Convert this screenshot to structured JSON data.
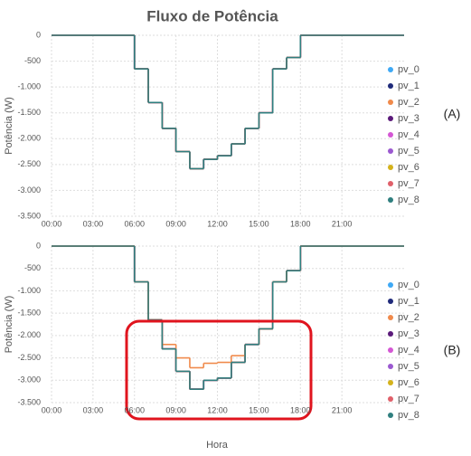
{
  "chart_data": [
    {
      "type": "line",
      "title": "Fluxo de Potência",
      "ylabel": "Potência (W)",
      "annotation": "(A)",
      "xlim": [
        0,
        25.5
      ],
      "ylim": [
        -3500,
        0
      ],
      "xticks": [
        {
          "value": 0,
          "label": "00:00"
        },
        {
          "value": 3,
          "label": "03:00"
        },
        {
          "value": 6,
          "label": "06:00"
        },
        {
          "value": 9,
          "label": "09:00"
        },
        {
          "value": 12,
          "label": "12:00"
        },
        {
          "value": 15,
          "label": "15:00"
        },
        {
          "value": 18,
          "label": "18:00"
        },
        {
          "value": 21,
          "label": "21:00"
        }
      ],
      "yticks": [
        0,
        -500,
        {
          "value": -1000,
          "label": "-1.000"
        },
        {
          "value": -1500,
          "label": "-1.500"
        },
        {
          "value": -2000,
          "label": "-2.000"
        },
        {
          "value": -2500,
          "label": "-2.500"
        },
        {
          "value": -3000,
          "label": "-3.000"
        },
        {
          "value": -3500,
          "label": "-3.500"
        }
      ],
      "grid": true,
      "step": true,
      "x": [
        0,
        6,
        7,
        8,
        9,
        10,
        11,
        12,
        13,
        14,
        15,
        16,
        17,
        18
      ],
      "series": [
        {
          "name": "pv_0",
          "color": "#3fa9f5",
          "values": [
            0,
            -650,
            -1300,
            -1800,
            -2250,
            -2580,
            -2400,
            -2330,
            -2100,
            -1800,
            -1500,
            -650,
            -430,
            0
          ]
        },
        {
          "name": "pv_1",
          "color": "#1f2a7a",
          "values": [
            0,
            -650,
            -1300,
            -1800,
            -2250,
            -2580,
            -2400,
            -2330,
            -2100,
            -1800,
            -1500,
            -650,
            -430,
            0
          ]
        },
        {
          "name": "pv_2",
          "color": "#f08a4b",
          "values": [
            0,
            -650,
            -1300,
            -1800,
            -2250,
            -2580,
            -2400,
            -2330,
            -2100,
            -1800,
            -1500,
            -650,
            -430,
            0
          ]
        },
        {
          "name": "pv_3",
          "color": "#5b1a7a",
          "values": [
            0,
            -650,
            -1300,
            -1800,
            -2250,
            -2580,
            -2400,
            -2330,
            -2100,
            -1800,
            -1500,
            -650,
            -430,
            0
          ]
        },
        {
          "name": "pv_4",
          "color": "#d457d4",
          "values": [
            0,
            -650,
            -1300,
            -1800,
            -2250,
            -2580,
            -2400,
            -2330,
            -2100,
            -1800,
            -1500,
            -650,
            -430,
            0
          ]
        },
        {
          "name": "pv_5",
          "color": "#9b59d0",
          "values": [
            0,
            -650,
            -1300,
            -1800,
            -2250,
            -2580,
            -2400,
            -2330,
            -2100,
            -1800,
            -1500,
            -650,
            -430,
            0
          ]
        },
        {
          "name": "pv_6",
          "color": "#d4b21a",
          "values": [
            0,
            -650,
            -1300,
            -1800,
            -2250,
            -2580,
            -2400,
            -2330,
            -2100,
            -1800,
            -1500,
            -650,
            -430,
            0
          ]
        },
        {
          "name": "pv_7",
          "color": "#e0606a",
          "values": [
            0,
            -650,
            -1300,
            -1800,
            -2250,
            -2580,
            -2400,
            -2330,
            -2100,
            -1800,
            -1500,
            -650,
            -430,
            0
          ]
        },
        {
          "name": "pv_8",
          "color": "#2f7f7f",
          "values": [
            0,
            -650,
            -1300,
            -1800,
            -2250,
            -2580,
            -2400,
            -2330,
            -2100,
            -1800,
            -1500,
            -650,
            -430,
            0
          ]
        }
      ]
    },
    {
      "type": "line",
      "ylabel": "Potência (W)",
      "xlabel": "Hora",
      "annotation": "(B)",
      "xlim": [
        0,
        25.5
      ],
      "ylim": [
        -3500,
        0
      ],
      "xticks": [
        {
          "value": 0,
          "label": "00:00"
        },
        {
          "value": 3,
          "label": "03:00"
        },
        {
          "value": 6,
          "label": "06:00"
        },
        {
          "value": 9,
          "label": "09:00"
        },
        {
          "value": 12,
          "label": "12:00"
        },
        {
          "value": 15,
          "label": "15:00"
        },
        {
          "value": 18,
          "label": "18:00"
        },
        {
          "value": 21,
          "label": "21:00"
        }
      ],
      "yticks": [
        0,
        -500,
        {
          "value": -1000,
          "label": "-1.000"
        },
        {
          "value": -1500,
          "label": "-1.500"
        },
        {
          "value": -2000,
          "label": "-2.000"
        },
        {
          "value": -2500,
          "label": "-2.500"
        },
        {
          "value": -3000,
          "label": "-3.000"
        },
        {
          "value": -3500,
          "label": "-3.500"
        }
      ],
      "grid": true,
      "step": true,
      "x": [
        0,
        6,
        7,
        8,
        9,
        10,
        11,
        12,
        13,
        14,
        15,
        16,
        17,
        18
      ],
      "series": [
        {
          "name": "pv_0",
          "color": "#3fa9f5",
          "values": [
            0,
            -800,
            -1650,
            -2300,
            -2800,
            -3200,
            -3000,
            -2950,
            -2600,
            -2200,
            -1850,
            -800,
            -550,
            0
          ]
        },
        {
          "name": "pv_1",
          "color": "#1f2a7a",
          "values": [
            0,
            -800,
            -1650,
            -2300,
            -2800,
            -3200,
            -3000,
            -2950,
            -2600,
            -2200,
            -1850,
            -800,
            -550,
            0
          ]
        },
        {
          "name": "pv_3",
          "color": "#5b1a7a",
          "values": [
            0,
            -800,
            -1650,
            -2300,
            -2800,
            -3200,
            -3000,
            -2950,
            -2600,
            -2200,
            -1850,
            -800,
            -550,
            0
          ]
        },
        {
          "name": "pv_4",
          "color": "#d457d4",
          "values": [
            0,
            -800,
            -1650,
            -2300,
            -2800,
            -3200,
            -3000,
            -2950,
            -2600,
            -2200,
            -1850,
            -800,
            -550,
            0
          ]
        },
        {
          "name": "pv_5",
          "color": "#9b59d0",
          "values": [
            0,
            -800,
            -1650,
            -2300,
            -2800,
            -3200,
            -3000,
            -2950,
            -2600,
            -2200,
            -1850,
            -800,
            -550,
            0
          ]
        },
        {
          "name": "pv_6",
          "color": "#d4b21a",
          "values": [
            0,
            -800,
            -1650,
            -2300,
            -2800,
            -3200,
            -3000,
            -2950,
            -2600,
            -2200,
            -1850,
            -800,
            -550,
            0
          ]
        },
        {
          "name": "pv_7",
          "color": "#e0606a",
          "values": [
            0,
            -800,
            -1650,
            -2300,
            -2800,
            -3200,
            -3000,
            -2950,
            -2600,
            -2200,
            -1850,
            -800,
            -550,
            0
          ]
        },
        {
          "name": "pv_2",
          "color": "#f08a4b",
          "values": [
            0,
            -800,
            -1650,
            -2200,
            -2500,
            -2720,
            -2620,
            -2600,
            -2450,
            -2200,
            -1850,
            -800,
            -550,
            0
          ]
        },
        {
          "name": "pv_8",
          "color": "#2f7f7f",
          "values": [
            0,
            -800,
            -1650,
            -2300,
            -2800,
            -3200,
            -3000,
            -2950,
            -2600,
            -2200,
            -1850,
            -800,
            -550,
            0
          ]
        }
      ]
    }
  ]
}
